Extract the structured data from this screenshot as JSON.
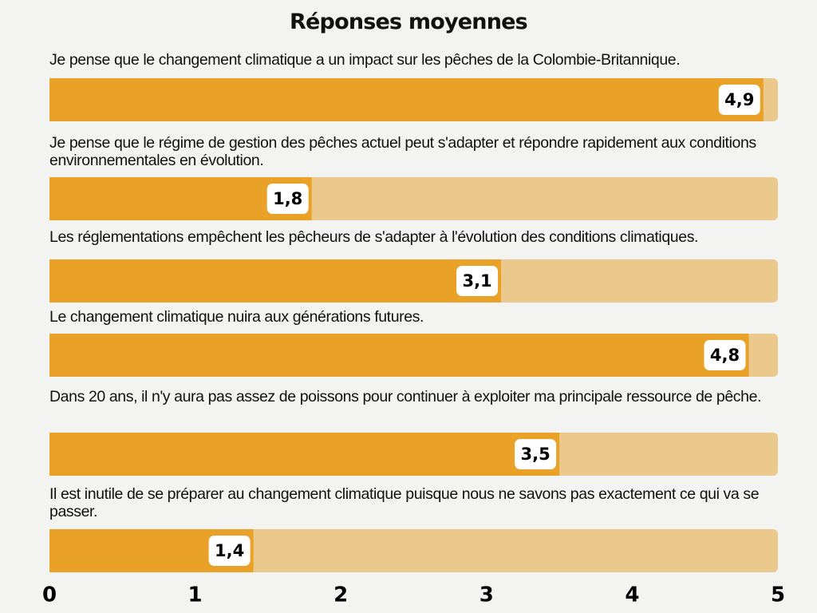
{
  "chart_data": {
    "type": "bar",
    "orientation": "horizontal",
    "title": "Réponses moyennes",
    "categories": [
      "Je pense que le changement climatique a un impact sur les pêches de la Colombie-Britannique.",
      "Je pense que le régime de gestion des pêches actuel peut s'adapter et répondre rapidement aux conditions environnementales en évolution.",
      "Les réglementations empêchent les pêcheurs de s'adapter à l'évolution des conditions climatiques.",
      "Le changement climatique nuira aux générations futures.",
      "Dans 20 ans, il n'y aura pas assez de poissons pour continuer à exploiter ma principale ressource de pêche.",
      "Il est inutile de se préparer au changement climatique puisque nous ne savons pas exactement ce qui va se passer."
    ],
    "values": [
      4.9,
      1.8,
      3.1,
      4.8,
      3.5,
      1.4
    ],
    "value_labels": [
      "4,9",
      "1,8",
      "3,1",
      "4,8",
      "3,5",
      "1,4"
    ],
    "color": "#e9a127",
    "track_color": "#ebc88c",
    "xlim": [
      0,
      5
    ],
    "xticks": [
      0,
      1,
      2,
      3,
      4,
      5
    ]
  }
}
